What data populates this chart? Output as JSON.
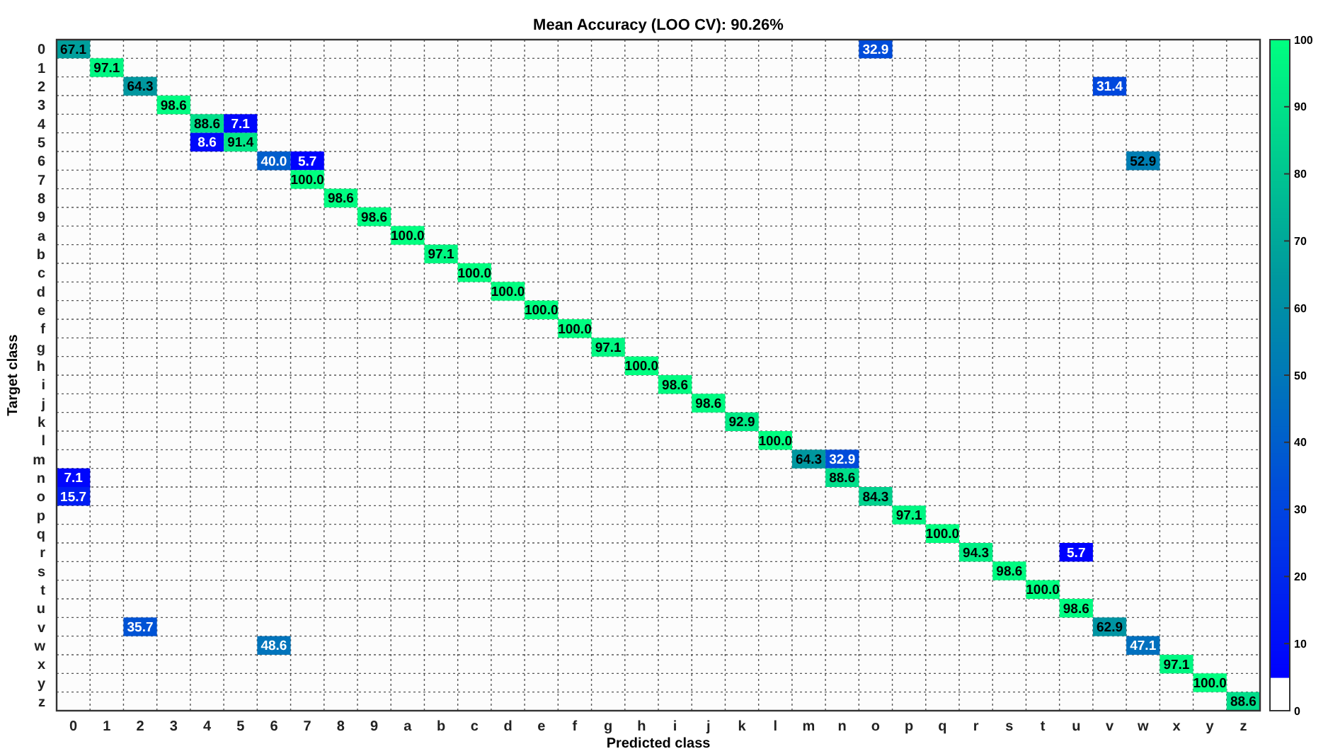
{
  "chart_data": {
    "type": "heatmap",
    "title": "Mean Accuracy (LOO CV): 90.26%",
    "xlabel": "Predicted class",
    "ylabel": "Target class",
    "categories": [
      "0",
      "1",
      "2",
      "3",
      "4",
      "5",
      "6",
      "7",
      "8",
      "9",
      "a",
      "b",
      "c",
      "d",
      "e",
      "f",
      "g",
      "h",
      "i",
      "j",
      "k",
      "l",
      "m",
      "n",
      "o",
      "p",
      "q",
      "r",
      "s",
      "t",
      "u",
      "v",
      "w",
      "x",
      "y",
      "z"
    ],
    "y_categories": [
      "0",
      "1",
      "2",
      "3",
      "4",
      "5",
      "6",
      "7",
      "8",
      "9",
      "a",
      "b",
      "c",
      "d",
      "e",
      "f",
      "g",
      "h",
      "i",
      "j",
      "k",
      "l",
      "m",
      "n",
      "o",
      "p",
      "q",
      "r",
      "s",
      "t",
      "u",
      "v",
      "w",
      "x",
      "y",
      "z"
    ],
    "cells": [
      [
        67.1,
        null,
        null,
        null,
        null,
        null,
        null,
        null,
        null,
        null,
        null,
        null,
        null,
        null,
        null,
        null,
        null,
        null,
        null,
        null,
        null,
        null,
        null,
        null,
        32.9,
        null,
        null,
        null,
        null,
        null,
        null,
        null,
        null,
        null,
        null,
        null
      ],
      [
        null,
        97.1,
        null,
        null,
        null,
        null,
        null,
        null,
        null,
        null,
        null,
        null,
        null,
        null,
        null,
        null,
        null,
        null,
        null,
        null,
        null,
        null,
        null,
        null,
        null,
        null,
        null,
        null,
        null,
        null,
        null,
        null,
        null,
        null,
        null,
        null
      ],
      [
        null,
        null,
        64.3,
        null,
        null,
        null,
        null,
        null,
        null,
        null,
        null,
        null,
        null,
        null,
        null,
        null,
        null,
        null,
        null,
        null,
        null,
        null,
        null,
        null,
        null,
        null,
        null,
        null,
        null,
        null,
        null,
        31.4,
        null,
        null,
        null,
        null
      ],
      [
        null,
        null,
        null,
        98.6,
        null,
        null,
        null,
        null,
        null,
        null,
        null,
        null,
        null,
        null,
        null,
        null,
        null,
        null,
        null,
        null,
        null,
        null,
        null,
        null,
        null,
        null,
        null,
        null,
        null,
        null,
        null,
        null,
        null,
        null,
        null,
        null
      ],
      [
        null,
        null,
        null,
        null,
        88.6,
        7.1,
        null,
        null,
        null,
        null,
        null,
        null,
        null,
        null,
        null,
        null,
        null,
        null,
        null,
        null,
        null,
        null,
        null,
        null,
        null,
        null,
        null,
        null,
        null,
        null,
        null,
        null,
        null,
        null,
        null,
        null
      ],
      [
        null,
        null,
        null,
        null,
        8.6,
        91.4,
        null,
        null,
        null,
        null,
        null,
        null,
        null,
        null,
        null,
        null,
        null,
        null,
        null,
        null,
        null,
        null,
        null,
        null,
        null,
        null,
        null,
        null,
        null,
        null,
        null,
        null,
        null,
        null,
        null,
        null
      ],
      [
        null,
        null,
        null,
        null,
        null,
        null,
        40.0,
        5.7,
        null,
        null,
        null,
        null,
        null,
        null,
        null,
        null,
        null,
        null,
        null,
        null,
        null,
        null,
        null,
        null,
        null,
        null,
        null,
        null,
        null,
        null,
        null,
        null,
        52.9,
        null,
        null,
        null
      ],
      [
        null,
        null,
        null,
        null,
        null,
        null,
        null,
        100.0,
        null,
        null,
        null,
        null,
        null,
        null,
        null,
        null,
        null,
        null,
        null,
        null,
        null,
        null,
        null,
        null,
        null,
        null,
        null,
        null,
        null,
        null,
        null,
        null,
        null,
        null,
        null,
        null
      ],
      [
        null,
        null,
        null,
        null,
        null,
        null,
        null,
        null,
        98.6,
        null,
        null,
        null,
        null,
        null,
        null,
        null,
        null,
        null,
        null,
        null,
        null,
        null,
        null,
        null,
        null,
        null,
        null,
        null,
        null,
        null,
        null,
        null,
        null,
        null,
        null,
        null
      ],
      [
        null,
        null,
        null,
        null,
        null,
        null,
        null,
        null,
        null,
        98.6,
        null,
        null,
        null,
        null,
        null,
        null,
        null,
        null,
        null,
        null,
        null,
        null,
        null,
        null,
        null,
        null,
        null,
        null,
        null,
        null,
        null,
        null,
        null,
        null,
        null,
        null
      ],
      [
        null,
        null,
        null,
        null,
        null,
        null,
        null,
        null,
        null,
        null,
        100.0,
        null,
        null,
        null,
        null,
        null,
        null,
        null,
        null,
        null,
        null,
        null,
        null,
        null,
        null,
        null,
        null,
        null,
        null,
        null,
        null,
        null,
        null,
        null,
        null,
        null
      ],
      [
        null,
        null,
        null,
        null,
        null,
        null,
        null,
        null,
        null,
        null,
        null,
        97.1,
        null,
        null,
        null,
        null,
        null,
        null,
        null,
        null,
        null,
        null,
        null,
        null,
        null,
        null,
        null,
        null,
        null,
        null,
        null,
        null,
        null,
        null,
        null,
        null
      ],
      [
        null,
        null,
        null,
        null,
        null,
        null,
        null,
        null,
        null,
        null,
        null,
        null,
        100.0,
        null,
        null,
        null,
        null,
        null,
        null,
        null,
        null,
        null,
        null,
        null,
        null,
        null,
        null,
        null,
        null,
        null,
        null,
        null,
        null,
        null,
        null,
        null
      ],
      [
        null,
        null,
        null,
        null,
        null,
        null,
        null,
        null,
        null,
        null,
        null,
        null,
        null,
        100.0,
        null,
        null,
        null,
        null,
        null,
        null,
        null,
        null,
        null,
        null,
        null,
        null,
        null,
        null,
        null,
        null,
        null,
        null,
        null,
        null,
        null,
        null
      ],
      [
        null,
        null,
        null,
        null,
        null,
        null,
        null,
        null,
        null,
        null,
        null,
        null,
        null,
        null,
        100.0,
        null,
        null,
        null,
        null,
        null,
        null,
        null,
        null,
        null,
        null,
        null,
        null,
        null,
        null,
        null,
        null,
        null,
        null,
        null,
        null,
        null
      ],
      [
        null,
        null,
        null,
        null,
        null,
        null,
        null,
        null,
        null,
        null,
        null,
        null,
        null,
        null,
        null,
        100.0,
        null,
        null,
        null,
        null,
        null,
        null,
        null,
        null,
        null,
        null,
        null,
        null,
        null,
        null,
        null,
        null,
        null,
        null,
        null,
        null
      ],
      [
        null,
        null,
        null,
        null,
        null,
        null,
        null,
        null,
        null,
        null,
        null,
        null,
        null,
        null,
        null,
        null,
        97.1,
        null,
        null,
        null,
        null,
        null,
        null,
        null,
        null,
        null,
        null,
        null,
        null,
        null,
        null,
        null,
        null,
        null,
        null,
        null
      ],
      [
        null,
        null,
        null,
        null,
        null,
        null,
        null,
        null,
        null,
        null,
        null,
        null,
        null,
        null,
        null,
        null,
        null,
        100.0,
        null,
        null,
        null,
        null,
        null,
        null,
        null,
        null,
        null,
        null,
        null,
        null,
        null,
        null,
        null,
        null,
        null,
        null
      ],
      [
        null,
        null,
        null,
        null,
        null,
        null,
        null,
        null,
        null,
        null,
        null,
        null,
        null,
        null,
        null,
        null,
        null,
        null,
        98.6,
        null,
        null,
        null,
        null,
        null,
        null,
        null,
        null,
        null,
        null,
        null,
        null,
        null,
        null,
        null,
        null,
        null
      ],
      [
        null,
        null,
        null,
        null,
        null,
        null,
        null,
        null,
        null,
        null,
        null,
        null,
        null,
        null,
        null,
        null,
        null,
        null,
        null,
        98.6,
        null,
        null,
        null,
        null,
        null,
        null,
        null,
        null,
        null,
        null,
        null,
        null,
        null,
        null,
        null,
        null
      ],
      [
        null,
        null,
        null,
        null,
        null,
        null,
        null,
        null,
        null,
        null,
        null,
        null,
        null,
        null,
        null,
        null,
        null,
        null,
        null,
        null,
        92.9,
        null,
        null,
        null,
        null,
        null,
        null,
        null,
        null,
        null,
        null,
        null,
        null,
        null,
        null,
        null
      ],
      [
        null,
        null,
        null,
        null,
        null,
        null,
        null,
        null,
        null,
        null,
        null,
        null,
        null,
        null,
        null,
        null,
        null,
        null,
        null,
        null,
        null,
        100.0,
        null,
        null,
        null,
        null,
        null,
        null,
        null,
        null,
        null,
        null,
        null,
        null,
        null,
        null
      ],
      [
        null,
        null,
        null,
        null,
        null,
        null,
        null,
        null,
        null,
        null,
        null,
        null,
        null,
        null,
        null,
        null,
        null,
        null,
        null,
        null,
        null,
        null,
        64.3,
        32.9,
        null,
        null,
        null,
        null,
        null,
        null,
        null,
        null,
        null,
        null,
        null,
        null
      ],
      [
        7.1,
        null,
        null,
        null,
        null,
        null,
        null,
        null,
        null,
        null,
        null,
        null,
        null,
        null,
        null,
        null,
        null,
        null,
        null,
        null,
        null,
        null,
        null,
        88.6,
        null,
        null,
        null,
        null,
        null,
        null,
        null,
        null,
        null,
        null,
        null,
        null
      ],
      [
        15.7,
        null,
        null,
        null,
        null,
        null,
        null,
        null,
        null,
        null,
        null,
        null,
        null,
        null,
        null,
        null,
        null,
        null,
        null,
        null,
        null,
        null,
        null,
        null,
        84.3,
        null,
        null,
        null,
        null,
        null,
        null,
        null,
        null,
        null,
        null,
        null
      ],
      [
        null,
        null,
        null,
        null,
        null,
        null,
        null,
        null,
        null,
        null,
        null,
        null,
        null,
        null,
        null,
        null,
        null,
        null,
        null,
        null,
        null,
        null,
        null,
        null,
        null,
        97.1,
        null,
        null,
        null,
        null,
        null,
        null,
        null,
        null,
        null,
        null
      ],
      [
        null,
        null,
        null,
        null,
        null,
        null,
        null,
        null,
        null,
        null,
        null,
        null,
        null,
        null,
        null,
        null,
        null,
        null,
        null,
        null,
        null,
        null,
        null,
        null,
        null,
        null,
        100.0,
        null,
        null,
        null,
        null,
        null,
        null,
        null,
        null,
        null
      ],
      [
        null,
        null,
        null,
        null,
        null,
        null,
        null,
        null,
        null,
        null,
        null,
        null,
        null,
        null,
        null,
        null,
        null,
        null,
        null,
        null,
        null,
        null,
        null,
        null,
        null,
        null,
        null,
        94.3,
        null,
        null,
        5.7,
        null,
        null,
        null,
        null,
        null
      ],
      [
        null,
        null,
        null,
        null,
        null,
        null,
        null,
        null,
        null,
        null,
        null,
        null,
        null,
        null,
        null,
        null,
        null,
        null,
        null,
        null,
        null,
        null,
        null,
        null,
        null,
        null,
        null,
        null,
        98.6,
        null,
        null,
        null,
        null,
        null,
        null,
        null
      ],
      [
        null,
        null,
        null,
        null,
        null,
        null,
        null,
        null,
        null,
        null,
        null,
        null,
        null,
        null,
        null,
        null,
        null,
        null,
        null,
        null,
        null,
        null,
        null,
        null,
        null,
        null,
        null,
        null,
        null,
        100.0,
        null,
        null,
        null,
        null,
        null,
        null
      ],
      [
        null,
        null,
        null,
        null,
        null,
        null,
        null,
        null,
        null,
        null,
        null,
        null,
        null,
        null,
        null,
        null,
        null,
        null,
        null,
        null,
        null,
        null,
        null,
        null,
        null,
        null,
        null,
        null,
        null,
        null,
        98.6,
        null,
        null,
        null,
        null,
        null
      ],
      [
        null,
        null,
        35.7,
        null,
        null,
        null,
        null,
        null,
        null,
        null,
        null,
        null,
        null,
        null,
        null,
        null,
        null,
        null,
        null,
        null,
        null,
        null,
        null,
        null,
        null,
        null,
        null,
        null,
        null,
        null,
        null,
        62.9,
        null,
        null,
        null,
        null
      ],
      [
        null,
        null,
        null,
        null,
        null,
        null,
        48.6,
        null,
        null,
        null,
        null,
        null,
        null,
        null,
        null,
        null,
        null,
        null,
        null,
        null,
        null,
        null,
        null,
        null,
        null,
        null,
        null,
        null,
        null,
        null,
        null,
        null,
        47.1,
        null,
        null,
        null
      ],
      [
        null,
        null,
        null,
        null,
        null,
        null,
        null,
        null,
        null,
        null,
        null,
        null,
        null,
        null,
        null,
        null,
        null,
        null,
        null,
        null,
        null,
        null,
        null,
        null,
        null,
        null,
        null,
        null,
        null,
        null,
        null,
        null,
        null,
        97.1,
        null,
        null
      ],
      [
        null,
        null,
        null,
        null,
        null,
        null,
        null,
        null,
        null,
        null,
        null,
        null,
        null,
        null,
        null,
        null,
        null,
        null,
        null,
        null,
        null,
        null,
        null,
        null,
        null,
        null,
        null,
        null,
        null,
        null,
        null,
        null,
        null,
        null,
        100.0,
        null
      ],
      [
        null,
        null,
        null,
        null,
        null,
        null,
        null,
        null,
        null,
        null,
        null,
        null,
        null,
        null,
        null,
        null,
        null,
        null,
        null,
        null,
        null,
        null,
        null,
        null,
        null,
        null,
        null,
        null,
        null,
        null,
        null,
        null,
        null,
        null,
        null,
        88.6
      ]
    ],
    "cell_labels": [
      [
        "67.1",
        null,
        null,
        null,
        null,
        null,
        null,
        null,
        null,
        null,
        null,
        null,
        null,
        null,
        null,
        null,
        null,
        null,
        null,
        null,
        null,
        null,
        null,
        null,
        "32.9",
        null,
        null,
        null,
        null,
        null,
        null,
        null,
        null,
        null,
        null,
        null
      ],
      [
        null,
        "97.1",
        null,
        null,
        null,
        null,
        null,
        null,
        null,
        null,
        null,
        null,
        null,
        null,
        null,
        null,
        null,
        null,
        null,
        null,
        null,
        null,
        null,
        null,
        null,
        null,
        null,
        null,
        null,
        null,
        null,
        null,
        null,
        null,
        null,
        null
      ],
      [
        null,
        null,
        "64.3",
        null,
        null,
        null,
        null,
        null,
        null,
        null,
        null,
        null,
        null,
        null,
        null,
        null,
        null,
        null,
        null,
        null,
        null,
        null,
        null,
        null,
        null,
        null,
        null,
        null,
        null,
        null,
        null,
        "31.4",
        null,
        null,
        null,
        null
      ],
      [
        null,
        null,
        null,
        "98.6",
        null,
        null,
        null,
        null,
        null,
        null,
        null,
        null,
        null,
        null,
        null,
        null,
        null,
        null,
        null,
        null,
        null,
        null,
        null,
        null,
        null,
        null,
        null,
        null,
        null,
        null,
        null,
        null,
        null,
        null,
        null,
        null
      ],
      [
        null,
        null,
        null,
        null,
        "88.6",
        "7.1",
        null,
        null,
        null,
        null,
        null,
        null,
        null,
        null,
        null,
        null,
        null,
        null,
        null,
        null,
        null,
        null,
        null,
        null,
        null,
        null,
        null,
        null,
        null,
        null,
        null,
        null,
        null,
        null,
        null,
        null
      ],
      [
        null,
        null,
        null,
        null,
        "8.6",
        "91.4",
        null,
        null,
        null,
        null,
        null,
        null,
        null,
        null,
        null,
        null,
        null,
        null,
        null,
        null,
        null,
        null,
        null,
        null,
        null,
        null,
        null,
        null,
        null,
        null,
        null,
        null,
        null,
        null,
        null,
        null
      ],
      [
        null,
        null,
        null,
        null,
        null,
        null,
        "40.0",
        "5.7",
        null,
        null,
        null,
        null,
        null,
        null,
        null,
        null,
        null,
        null,
        null,
        null,
        null,
        null,
        null,
        null,
        null,
        null,
        null,
        null,
        null,
        null,
        null,
        null,
        "52.9",
        null,
        null,
        null
      ],
      [
        null,
        null,
        null,
        null,
        null,
        null,
        null,
        "100.0",
        null,
        null,
        null,
        null,
        null,
        null,
        null,
        null,
        null,
        null,
        null,
        null,
        null,
        null,
        null,
        null,
        null,
        null,
        null,
        null,
        null,
        null,
        null,
        null,
        null,
        null,
        null,
        null
      ],
      [
        null,
        null,
        null,
        null,
        null,
        null,
        null,
        null,
        "98.6",
        null,
        null,
        null,
        null,
        null,
        null,
        null,
        null,
        null,
        null,
        null,
        null,
        null,
        null,
        null,
        null,
        null,
        null,
        null,
        null,
        null,
        null,
        null,
        null,
        null,
        null,
        null
      ],
      [
        null,
        null,
        null,
        null,
        null,
        null,
        null,
        null,
        null,
        "98.6",
        null,
        null,
        null,
        null,
        null,
        null,
        null,
        null,
        null,
        null,
        null,
        null,
        null,
        null,
        null,
        null,
        null,
        null,
        null,
        null,
        null,
        null,
        null,
        null,
        null,
        null
      ],
      [
        null,
        null,
        null,
        null,
        null,
        null,
        null,
        null,
        null,
        null,
        "100.0",
        null,
        null,
        null,
        null,
        null,
        null,
        null,
        null,
        null,
        null,
        null,
        null,
        null,
        null,
        null,
        null,
        null,
        null,
        null,
        null,
        null,
        null,
        null,
        null,
        null
      ],
      [
        null,
        null,
        null,
        null,
        null,
        null,
        null,
        null,
        null,
        null,
        null,
        "97.1",
        null,
        null,
        null,
        null,
        null,
        null,
        null,
        null,
        null,
        null,
        null,
        null,
        null,
        null,
        null,
        null,
        null,
        null,
        null,
        null,
        null,
        null,
        null,
        null
      ],
      [
        null,
        null,
        null,
        null,
        null,
        null,
        null,
        null,
        null,
        null,
        null,
        null,
        "100.0",
        null,
        null,
        null,
        null,
        null,
        null,
        null,
        null,
        null,
        null,
        null,
        null,
        null,
        null,
        null,
        null,
        null,
        null,
        null,
        null,
        null,
        null,
        null
      ],
      [
        null,
        null,
        null,
        null,
        null,
        null,
        null,
        null,
        null,
        null,
        null,
        null,
        null,
        "100.0",
        null,
        null,
        null,
        null,
        null,
        null,
        null,
        null,
        null,
        null,
        null,
        null,
        null,
        null,
        null,
        null,
        null,
        null,
        null,
        null,
        null,
        null
      ],
      [
        null,
        null,
        null,
        null,
        null,
        null,
        null,
        null,
        null,
        null,
        null,
        null,
        null,
        null,
        "100.0",
        null,
        null,
        null,
        null,
        null,
        null,
        null,
        null,
        null,
        null,
        null,
        null,
        null,
        null,
        null,
        null,
        null,
        null,
        null,
        null,
        null
      ],
      [
        null,
        null,
        null,
        null,
        null,
        null,
        null,
        null,
        null,
        null,
        null,
        null,
        null,
        null,
        null,
        "100.0",
        null,
        null,
        null,
        null,
        null,
        null,
        null,
        null,
        null,
        null,
        null,
        null,
        null,
        null,
        null,
        null,
        null,
        null,
        null,
        null
      ],
      [
        null,
        null,
        null,
        null,
        null,
        null,
        null,
        null,
        null,
        null,
        null,
        null,
        null,
        null,
        null,
        null,
        "97.1",
        null,
        null,
        null,
        null,
        null,
        null,
        null,
        null,
        null,
        null,
        null,
        null,
        null,
        null,
        null,
        null,
        null,
        null,
        null
      ],
      [
        null,
        null,
        null,
        null,
        null,
        null,
        null,
        null,
        null,
        null,
        null,
        null,
        null,
        null,
        null,
        null,
        null,
        "100.0",
        null,
        null,
        null,
        null,
        null,
        null,
        null,
        null,
        null,
        null,
        null,
        null,
        null,
        null,
        null,
        null,
        null,
        null
      ],
      [
        null,
        null,
        null,
        null,
        null,
        null,
        null,
        null,
        null,
        null,
        null,
        null,
        null,
        null,
        null,
        null,
        null,
        null,
        "98.6",
        null,
        null,
        null,
        null,
        null,
        null,
        null,
        null,
        null,
        null,
        null,
        null,
        null,
        null,
        null,
        null,
        null
      ],
      [
        null,
        null,
        null,
        null,
        null,
        null,
        null,
        null,
        null,
        null,
        null,
        null,
        null,
        null,
        null,
        null,
        null,
        null,
        null,
        "98.6",
        null,
        null,
        null,
        null,
        null,
        null,
        null,
        null,
        null,
        null,
        null,
        null,
        null,
        null,
        null,
        null
      ],
      [
        null,
        null,
        null,
        null,
        null,
        null,
        null,
        null,
        null,
        null,
        null,
        null,
        null,
        null,
        null,
        null,
        null,
        null,
        null,
        null,
        "92.9",
        null,
        null,
        null,
        null,
        null,
        null,
        null,
        null,
        null,
        null,
        null,
        null,
        null,
        null,
        null
      ],
      [
        null,
        null,
        null,
        null,
        null,
        null,
        null,
        null,
        null,
        null,
        null,
        null,
        null,
        null,
        null,
        null,
        null,
        null,
        null,
        null,
        null,
        "100.0",
        null,
        null,
        null,
        null,
        null,
        null,
        null,
        null,
        null,
        null,
        null,
        null,
        null,
        null
      ],
      [
        null,
        null,
        null,
        null,
        null,
        null,
        null,
        null,
        null,
        null,
        null,
        null,
        null,
        null,
        null,
        null,
        null,
        null,
        null,
        null,
        null,
        null,
        "64.3",
        "32.9",
        null,
        null,
        null,
        null,
        null,
        null,
        null,
        null,
        null,
        null,
        null,
        null
      ],
      [
        "7.1",
        null,
        null,
        null,
        null,
        null,
        null,
        null,
        null,
        null,
        null,
        null,
        null,
        null,
        null,
        null,
        null,
        null,
        null,
        null,
        null,
        null,
        null,
        "88.6",
        null,
        null,
        null,
        null,
        null,
        null,
        null,
        null,
        null,
        null,
        null,
        null
      ],
      [
        "15.7",
        null,
        null,
        null,
        null,
        null,
        null,
        null,
        null,
        null,
        null,
        null,
        null,
        null,
        null,
        null,
        null,
        null,
        null,
        null,
        null,
        null,
        null,
        null,
        "84.3",
        null,
        null,
        null,
        null,
        null,
        null,
        null,
        null,
        null,
        null,
        null
      ],
      [
        null,
        null,
        null,
        null,
        null,
        null,
        null,
        null,
        null,
        null,
        null,
        null,
        null,
        null,
        null,
        null,
        null,
        null,
        null,
        null,
        null,
        null,
        null,
        null,
        null,
        "97.1",
        null,
        null,
        null,
        null,
        null,
        null,
        null,
        null,
        null,
        null
      ],
      [
        null,
        null,
        null,
        null,
        null,
        null,
        null,
        null,
        null,
        null,
        null,
        null,
        null,
        null,
        null,
        null,
        null,
        null,
        null,
        null,
        null,
        null,
        null,
        null,
        null,
        null,
        "100.0",
        null,
        null,
        null,
        null,
        null,
        null,
        null,
        null,
        null
      ],
      [
        null,
        null,
        null,
        null,
        null,
        null,
        null,
        null,
        null,
        null,
        null,
        null,
        null,
        null,
        null,
        null,
        null,
        null,
        null,
        null,
        null,
        null,
        null,
        null,
        null,
        null,
        null,
        "94.3",
        null,
        null,
        "5.7",
        null,
        null,
        null,
        null,
        null
      ],
      [
        null,
        null,
        null,
        null,
        null,
        null,
        null,
        null,
        null,
        null,
        null,
        null,
        null,
        null,
        null,
        null,
        null,
        null,
        null,
        null,
        null,
        null,
        null,
        null,
        null,
        null,
        null,
        null,
        "98.6",
        null,
        null,
        null,
        null,
        null,
        null,
        null
      ],
      [
        null,
        null,
        null,
        null,
        null,
        null,
        null,
        null,
        null,
        null,
        null,
        null,
        null,
        null,
        null,
        null,
        null,
        null,
        null,
        null,
        null,
        null,
        null,
        null,
        null,
        null,
        null,
        null,
        null,
        "100.0",
        null,
        null,
        null,
        null,
        null,
        null
      ],
      [
        null,
        null,
        null,
        null,
        null,
        null,
        null,
        null,
        null,
        null,
        null,
        null,
        null,
        null,
        null,
        null,
        null,
        null,
        null,
        null,
        null,
        null,
        null,
        null,
        null,
        null,
        null,
        null,
        null,
        null,
        "98.6",
        null,
        null,
        null,
        null,
        null
      ],
      [
        null,
        null,
        "35.7",
        null,
        null,
        null,
        null,
        null,
        null,
        null,
        null,
        null,
        null,
        null,
        null,
        null,
        null,
        null,
        null,
        null,
        null,
        null,
        null,
        null,
        null,
        null,
        null,
        null,
        null,
        null,
        null,
        "62.9",
        null,
        null,
        null,
        null
      ],
      [
        null,
        null,
        null,
        null,
        null,
        null,
        "48.6",
        null,
        null,
        null,
        null,
        null,
        null,
        null,
        null,
        null,
        null,
        null,
        null,
        null,
        null,
        null,
        null,
        null,
        null,
        null,
        null,
        null,
        null,
        null,
        null,
        null,
        "47.1",
        null,
        null,
        null
      ],
      [
        null,
        null,
        null,
        null,
        null,
        null,
        null,
        null,
        null,
        null,
        null,
        null,
        null,
        null,
        null,
        null,
        null,
        null,
        null,
        null,
        null,
        null,
        null,
        null,
        null,
        null,
        null,
        null,
        null,
        null,
        null,
        null,
        null,
        "97.1",
        null,
        null
      ],
      [
        null,
        null,
        null,
        null,
        null,
        null,
        null,
        null,
        null,
        null,
        null,
        null,
        null,
        null,
        null,
        null,
        null,
        null,
        null,
        null,
        null,
        null,
        null,
        null,
        null,
        null,
        null,
        null,
        null,
        null,
        null,
        null,
        null,
        null,
        "100.0",
        null
      ],
      [
        null,
        null,
        null,
        null,
        null,
        null,
        null,
        null,
        null,
        null,
        null,
        null,
        null,
        null,
        null,
        null,
        null,
        null,
        null,
        null,
        null,
        null,
        null,
        null,
        null,
        null,
        null,
        null,
        null,
        null,
        null,
        null,
        null,
        null,
        null,
        "88.6"
      ]
    ],
    "data_labels": true,
    "grid": true,
    "clim": [
      0,
      100
    ],
    "cticks": [
      0,
      10,
      20,
      30,
      40,
      50,
      60,
      70,
      80,
      90,
      100
    ]
  }
}
